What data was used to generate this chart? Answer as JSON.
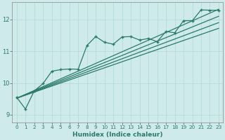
{
  "xlabel": "Humidex (Indice chaleur)",
  "ylabel": "",
  "background_color": "#ceeaea",
  "line_color": "#2a7a6a",
  "xlim": [
    -0.5,
    23.5
  ],
  "ylim": [
    8.75,
    12.55
  ],
  "yticks": [
    9,
    10,
    11,
    12
  ],
  "xticks": [
    0,
    1,
    2,
    3,
    4,
    5,
    6,
    7,
    8,
    9,
    10,
    11,
    12,
    13,
    14,
    15,
    16,
    17,
    18,
    19,
    20,
    21,
    22,
    23
  ],
  "series_with_markers": {
    "x": [
      0,
      1,
      2,
      3,
      4,
      5,
      6,
      7,
      8,
      9,
      10,
      11,
      12,
      13,
      14,
      15,
      16,
      17,
      18,
      19,
      20,
      21,
      22,
      23
    ],
    "y": [
      9.55,
      9.18,
      9.75,
      9.98,
      10.37,
      10.42,
      10.44,
      10.43,
      11.18,
      11.46,
      11.28,
      11.22,
      11.45,
      11.46,
      11.35,
      11.4,
      11.3,
      11.62,
      11.58,
      11.96,
      11.96,
      12.3,
      12.29,
      12.29
    ]
  },
  "smooth_lines": [
    {
      "x": [
        0,
        23
      ],
      "y": [
        9.52,
        12.32
      ]
    },
    {
      "x": [
        0,
        23
      ],
      "y": [
        9.52,
        12.1
      ]
    },
    {
      "x": [
        0,
        23
      ],
      "y": [
        9.52,
        11.9
      ]
    },
    {
      "x": [
        0,
        23
      ],
      "y": [
        9.52,
        11.72
      ]
    }
  ],
  "grid_color": "#b0d8d8",
  "spine_color": "#888888"
}
